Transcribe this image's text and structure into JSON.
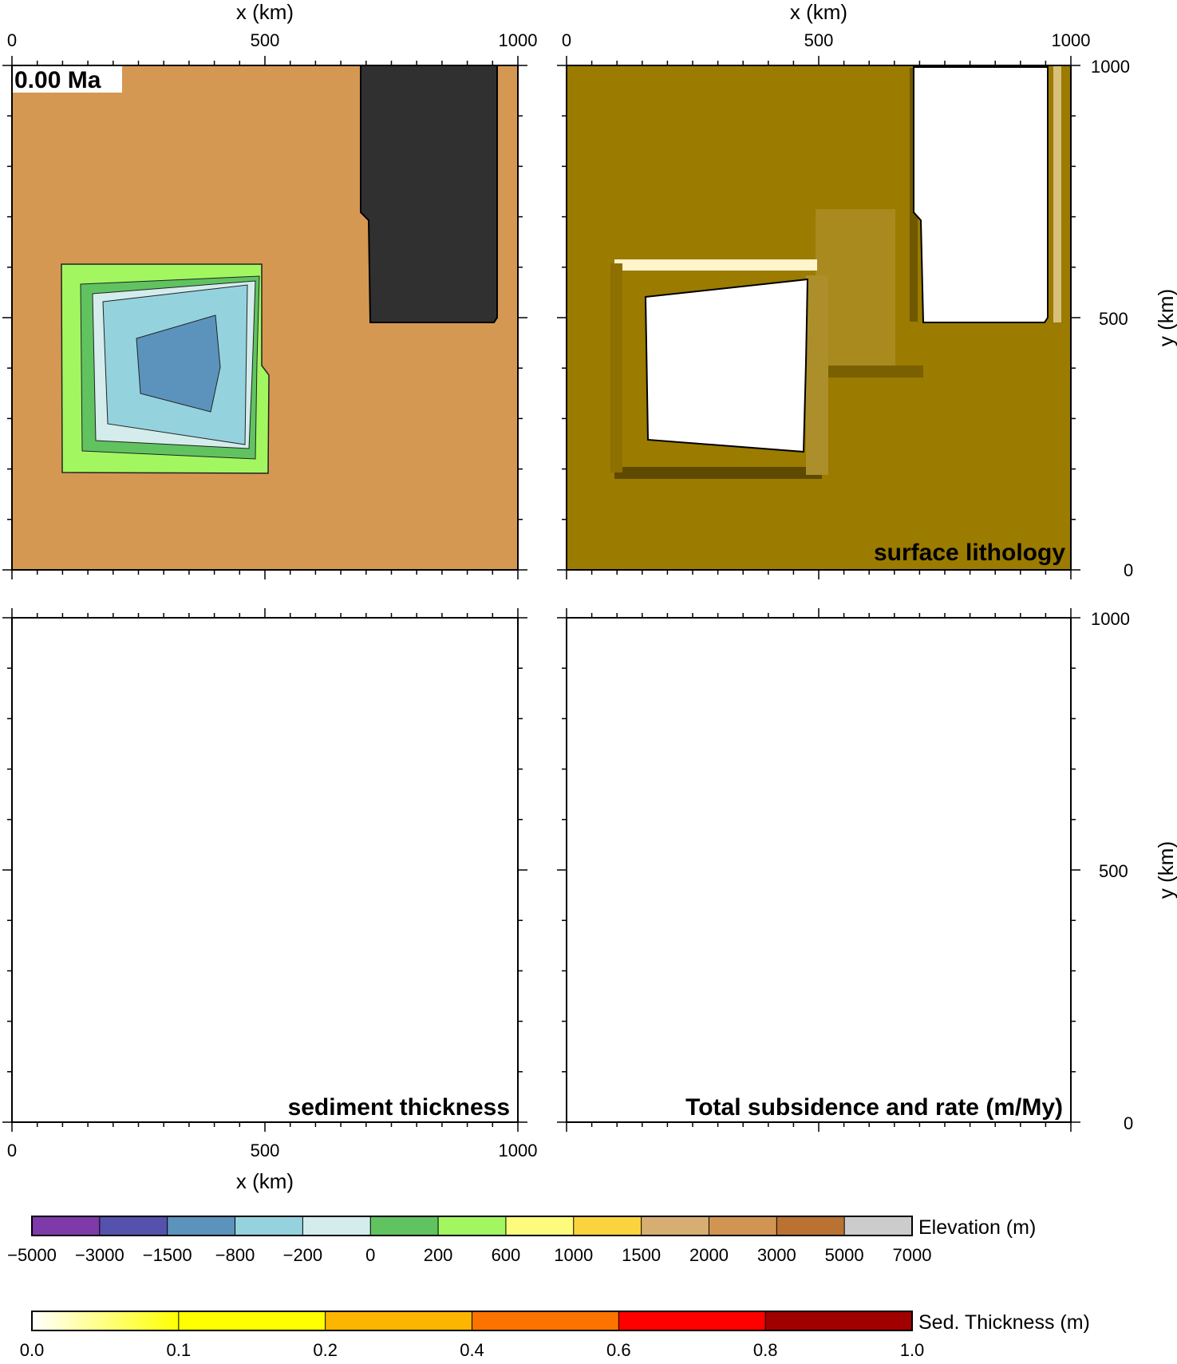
{
  "time_label": "0.00 Ma",
  "panels": {
    "top_left": {
      "x_axis_label": "x (km)",
      "x_ticks": [
        "0",
        "500",
        "1000"
      ]
    },
    "top_right": {
      "title": "surface lithology",
      "x_axis_label": "x (km)",
      "x_ticks": [
        "0",
        "500",
        "1000"
      ],
      "y_axis_label": "y (km)",
      "y_ticks": [
        "0",
        "500",
        "1000"
      ]
    },
    "bottom_left": {
      "title": "sediment thickness",
      "x_axis_label": "x (km)",
      "x_ticks": [
        "0",
        "500",
        "1000"
      ]
    },
    "bottom_right": {
      "title": "Total subsidence  and rate (m/My)",
      "y_axis_label": "y (km)",
      "y_ticks": [
        "0",
        "500",
        "1000"
      ]
    }
  },
  "colorbars": {
    "elevation": {
      "label": "Elevation (m)",
      "ticks": [
        "−5000",
        "−3000",
        "−1500",
        "−800",
        "−200",
        "0",
        "200",
        "600",
        "1000",
        "1500",
        "2000",
        "3000",
        "5000",
        "7000"
      ],
      "colors": [
        "#7e3aa9",
        "#5452ac",
        "#5b93bd",
        "#94d3de",
        "#d4ecec",
        "#60c360",
        "#a2f761",
        "#fdfb7c",
        "#fbd33c",
        "#d7ae72",
        "#d29453",
        "#b97232",
        "#cccccc"
      ]
    },
    "sediment": {
      "label": "Sed. Thickness (m)",
      "ticks": [
        "0.0",
        "0.1",
        "0.2",
        "0.4",
        "0.6",
        "0.8",
        "1.0"
      ],
      "colors": [
        "#fffff2",
        "#ffff00",
        "#fdb600",
        "#fd7300",
        "#ff0000",
        "#a00000"
      ]
    }
  },
  "chart_data": [
    {
      "type": "heatmap",
      "panel": "top_left",
      "title": "",
      "xlabel": "x (km)",
      "xlim": [
        0,
        1000
      ],
      "ylim": [
        0,
        1000
      ],
      "background_color": "#d59852",
      "regions": [
        {
          "name": "deep-basin",
          "color": "#5b93bd",
          "polygon": [
            [
              245,
              460
            ],
            [
              405,
              505
            ],
            [
              395,
              310
            ],
            [
              315,
              335
            ],
            [
              245,
              365
            ]
          ]
        },
        {
          "name": "shallow-basin",
          "color": "#94d3de",
          "polygon": [
            [
              175,
              540
            ],
            [
              470,
              570
            ],
            [
              465,
              240
            ],
            [
              180,
              255
            ]
          ]
        },
        {
          "name": "highland-block",
          "color": "#303030",
          "polygon": [
            [
              690,
              1000
            ],
            [
              955,
              1000
            ],
            [
              955,
              495
            ],
            [
              705,
              495
            ],
            [
              705,
              705
            ],
            [
              690,
              715
            ]
          ]
        }
      ]
    },
    {
      "type": "heatmap",
      "panel": "top_right",
      "title": "surface lithology",
      "xlabel": "x (km)",
      "ylabel": "y (km)",
      "xlim": [
        0,
        1000
      ],
      "ylim": [
        0,
        1000
      ],
      "background_color": "#9b7b00",
      "regions": [
        {
          "name": "lithology-patch-a",
          "color": "#ffffff",
          "polygon": [
            [
              155,
              540
            ],
            [
              475,
              575
            ],
            [
              470,
              230
            ],
            [
              160,
              255
            ]
          ]
        },
        {
          "name": "lithology-patch-b",
          "color": "#ffffff",
          "polygon": [
            [
              690,
              995
            ],
            [
              950,
              995
            ],
            [
              950,
              495
            ],
            [
              705,
              495
            ],
            [
              705,
              710
            ],
            [
              690,
              720
            ]
          ]
        }
      ]
    }
  ]
}
